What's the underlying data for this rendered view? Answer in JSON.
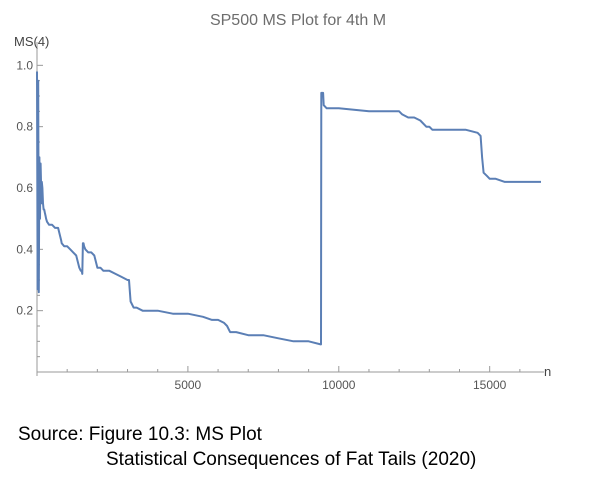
{
  "chart_data": {
    "type": "line",
    "title": "SP500 MS Plot for 4th M",
    "xlabel": "n",
    "ylabel": "MS(4)",
    "xlim": [
      0,
      16800
    ],
    "ylim": [
      0,
      1.05
    ],
    "x_ticks": [
      5000,
      10000,
      15000
    ],
    "y_ticks": [
      0.2,
      0.4,
      0.6,
      0.8,
      1.0
    ],
    "x_tick_labels": [
      "5000",
      "10000",
      "15000"
    ],
    "y_tick_labels": [
      "0.2",
      "0.4",
      "0.6",
      "0.8",
      "1.0"
    ],
    "grid": false,
    "color": "#5b7fb5",
    "series": [
      {
        "x": [
          0,
          20,
          40,
          60,
          80,
          100,
          120,
          150,
          160,
          180,
          200,
          220,
          240,
          260,
          280,
          300,
          330,
          400,
          500,
          600,
          700,
          800,
          820,
          900,
          1000,
          1100,
          1200,
          1300,
          1400,
          1450,
          1480,
          1500,
          1520,
          1540,
          1560,
          1600,
          1700,
          1800,
          1900,
          2000,
          2100,
          2200,
          2400,
          2600,
          2800,
          3000,
          3050,
          3100,
          3150,
          3200,
          3300,
          3500,
          4000,
          4500,
          5000,
          5500,
          5800,
          6000,
          6200,
          6300,
          6400,
          6600,
          7000,
          7500,
          8000,
          8500,
          9000,
          9400,
          9410,
          9420,
          9480,
          9500,
          9600,
          10000,
          11000,
          11500,
          12000,
          12100,
          12300,
          12500,
          12700,
          12900,
          13000,
          13100,
          13200,
          13400,
          13800,
          14200,
          14600,
          14700,
          14750,
          14800,
          14900,
          15000,
          15200,
          15500,
          15800,
          16000,
          16400,
          16700
        ],
        "y": [
          0.98,
          0.27,
          0.95,
          0.26,
          0.7,
          0.5,
          0.68,
          0.55,
          0.62,
          0.6,
          0.55,
          0.53,
          0.53,
          0.52,
          0.51,
          0.5,
          0.49,
          0.48,
          0.48,
          0.47,
          0.47,
          0.43,
          0.42,
          0.41,
          0.41,
          0.4,
          0.39,
          0.38,
          0.34,
          0.33,
          0.33,
          0.32,
          0.42,
          0.42,
          0.41,
          0.4,
          0.39,
          0.39,
          0.38,
          0.34,
          0.34,
          0.33,
          0.33,
          0.32,
          0.31,
          0.3,
          0.3,
          0.23,
          0.22,
          0.21,
          0.21,
          0.2,
          0.2,
          0.19,
          0.19,
          0.18,
          0.17,
          0.17,
          0.16,
          0.15,
          0.13,
          0.13,
          0.12,
          0.12,
          0.11,
          0.1,
          0.1,
          0.09,
          0.09,
          0.91,
          0.91,
          0.87,
          0.86,
          0.86,
          0.85,
          0.85,
          0.85,
          0.84,
          0.83,
          0.83,
          0.82,
          0.8,
          0.8,
          0.79,
          0.79,
          0.79,
          0.79,
          0.79,
          0.78,
          0.77,
          0.7,
          0.65,
          0.64,
          0.63,
          0.63,
          0.62,
          0.62,
          0.62,
          0.62,
          0.62
        ]
      }
    ]
  }
}
